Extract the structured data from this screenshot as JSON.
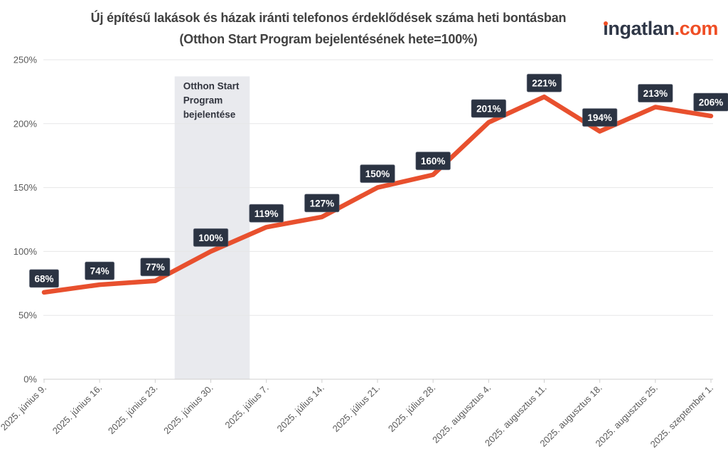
{
  "logo": {
    "brand": "ingatlan",
    "tld": ".com"
  },
  "chart_data": {
    "type": "line",
    "title": "Új építésű lakások és házak iránti telefonos érdeklődések száma heti bontásban",
    "subtitle": "(Otthon Start Program bejelentésének hete=100%)",
    "categories": [
      "2025. június 9.",
      "2025. június 16.",
      "2025. június 23.",
      "2025. június 30.",
      "2025. július 7.",
      "2025. július 14.",
      "2025. július 21.",
      "2025. július 28.",
      "2025. augusztus 4.",
      "2025. augusztus 11.",
      "2025. augusztus 18.",
      "2025. augusztus 25.",
      "2025. szeptember 1."
    ],
    "values": [
      68,
      74,
      77,
      100,
      119,
      127,
      150,
      160,
      201,
      221,
      194,
      213,
      206
    ],
    "data_labels": [
      "68%",
      "74%",
      "77%",
      "100%",
      "119%",
      "127%",
      "150%",
      "160%",
      "201%",
      "221%",
      "194%",
      "213%",
      "206%"
    ],
    "unit": "%",
    "ylim": [
      0,
      250
    ],
    "yticks": [
      0,
      50,
      100,
      150,
      200,
      250
    ],
    "ytick_labels": [
      "0%",
      "50%",
      "100%",
      "150%",
      "200%",
      "250%"
    ],
    "grid": "horizontal",
    "legend": "none",
    "annotation_band": {
      "lines": [
        "Otthon Start",
        "Program",
        "bejelentése"
      ],
      "from_index": 2.35,
      "to_index": 3.7,
      "top_value": 237
    },
    "colors": {
      "line": "#e8502e",
      "label_bg": "#2b3342",
      "label_border": "#5a6172",
      "label_text": "#ffffff",
      "band": "#e9eaee",
      "grid": "#e6e6e7",
      "axis_line": "#cfcfcf",
      "axis_text": "#5a5a5a",
      "annotation_text": "#31343e",
      "title": "#414141",
      "logo_dark": "#2f3747",
      "logo_accent": "#ef4e25"
    }
  }
}
